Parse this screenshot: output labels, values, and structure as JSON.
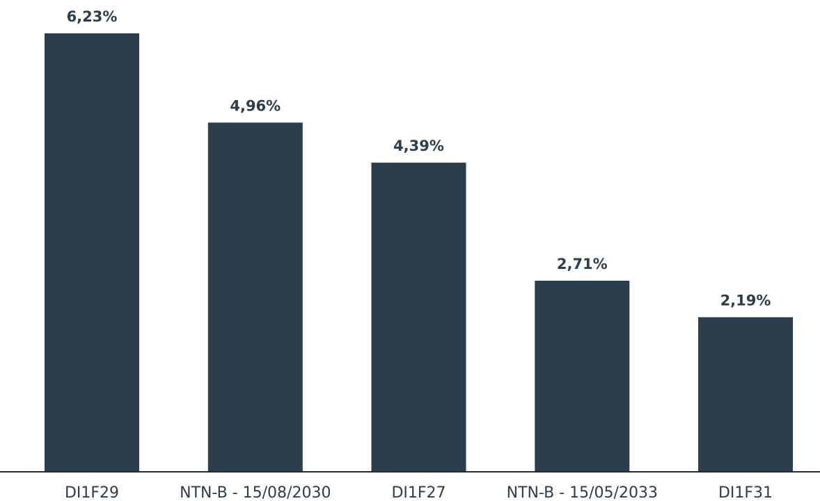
{
  "chart_data": {
    "type": "bar",
    "categories": [
      "DI1F29",
      "NTN-B - 15/08/2030",
      "DI1F27",
      "NTN-B - 15/05/2033",
      "DI1F31"
    ],
    "values": [
      6.23,
      4.96,
      4.39,
      2.71,
      2.19
    ],
    "value_labels": [
      "6,23%",
      "4,96%",
      "4,39%",
      "2,71%",
      "2,19%"
    ],
    "title": "",
    "xlabel": "",
    "ylabel": "",
    "ylim": [
      0,
      6.23
    ],
    "grid": false,
    "legend": "none",
    "colors": {
      "bar": "#2c3e4b",
      "text": "#2c3e4b",
      "axis": "#1f2b34"
    }
  }
}
